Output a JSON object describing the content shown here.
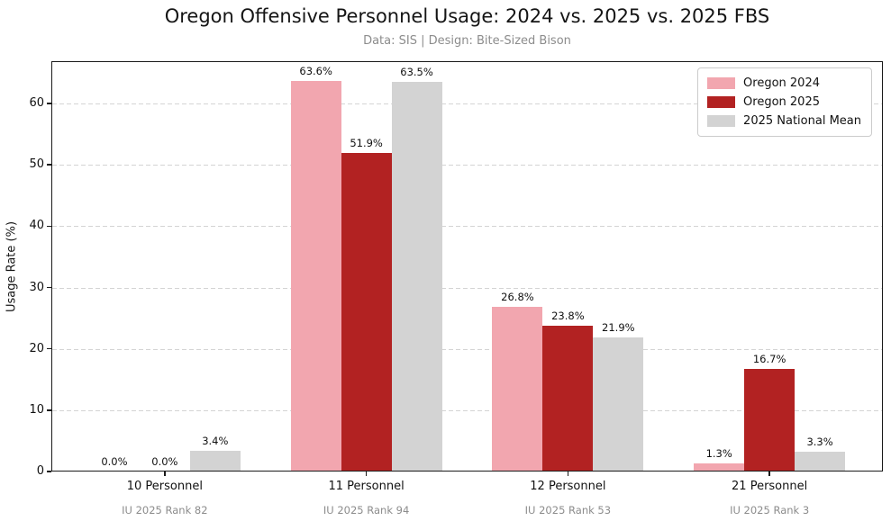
{
  "chart_data": {
    "type": "bar",
    "title": "Oregon Offensive Personnel Usage: 2024 vs. 2025 vs. 2025 FBS",
    "subtitle": "Data: SIS | Design: Bite-Sized Bison",
    "ylabel": "Usage Rate (%)",
    "xlabel": "",
    "categories": [
      "10 Personnel",
      "11 Personnel",
      "12 Personnel",
      "21 Personnel"
    ],
    "category_footnotes": [
      "IU 2025 Rank 82",
      "IU 2025 Rank 94",
      "IU 2025 Rank 53",
      "IU 2025 Rank 3"
    ],
    "series": [
      {
        "name": "Oregon 2024",
        "color": "#F2A6AF",
        "values": [
          0.0,
          63.6,
          26.8,
          1.3
        ]
      },
      {
        "name": "Oregon 2025",
        "color": "#B22222",
        "values": [
          0.0,
          51.9,
          23.8,
          16.7
        ]
      },
      {
        "name": "2025 National Mean",
        "color": "#D3D3D3",
        "values": [
          3.4,
          63.5,
          21.9,
          3.3
        ]
      }
    ],
    "value_label_suffix": "%",
    "value_label_decimals": 1,
    "yticks": [
      0,
      10,
      20,
      30,
      40,
      50,
      60
    ],
    "ylim": [
      0,
      66.9
    ],
    "xlim": [
      -0.5625,
      3.5625
    ],
    "bar_width_units": 0.25,
    "grid": "horizontal-dashed",
    "grid_color": "#d4d4d4",
    "legend_position": "upper-right"
  }
}
